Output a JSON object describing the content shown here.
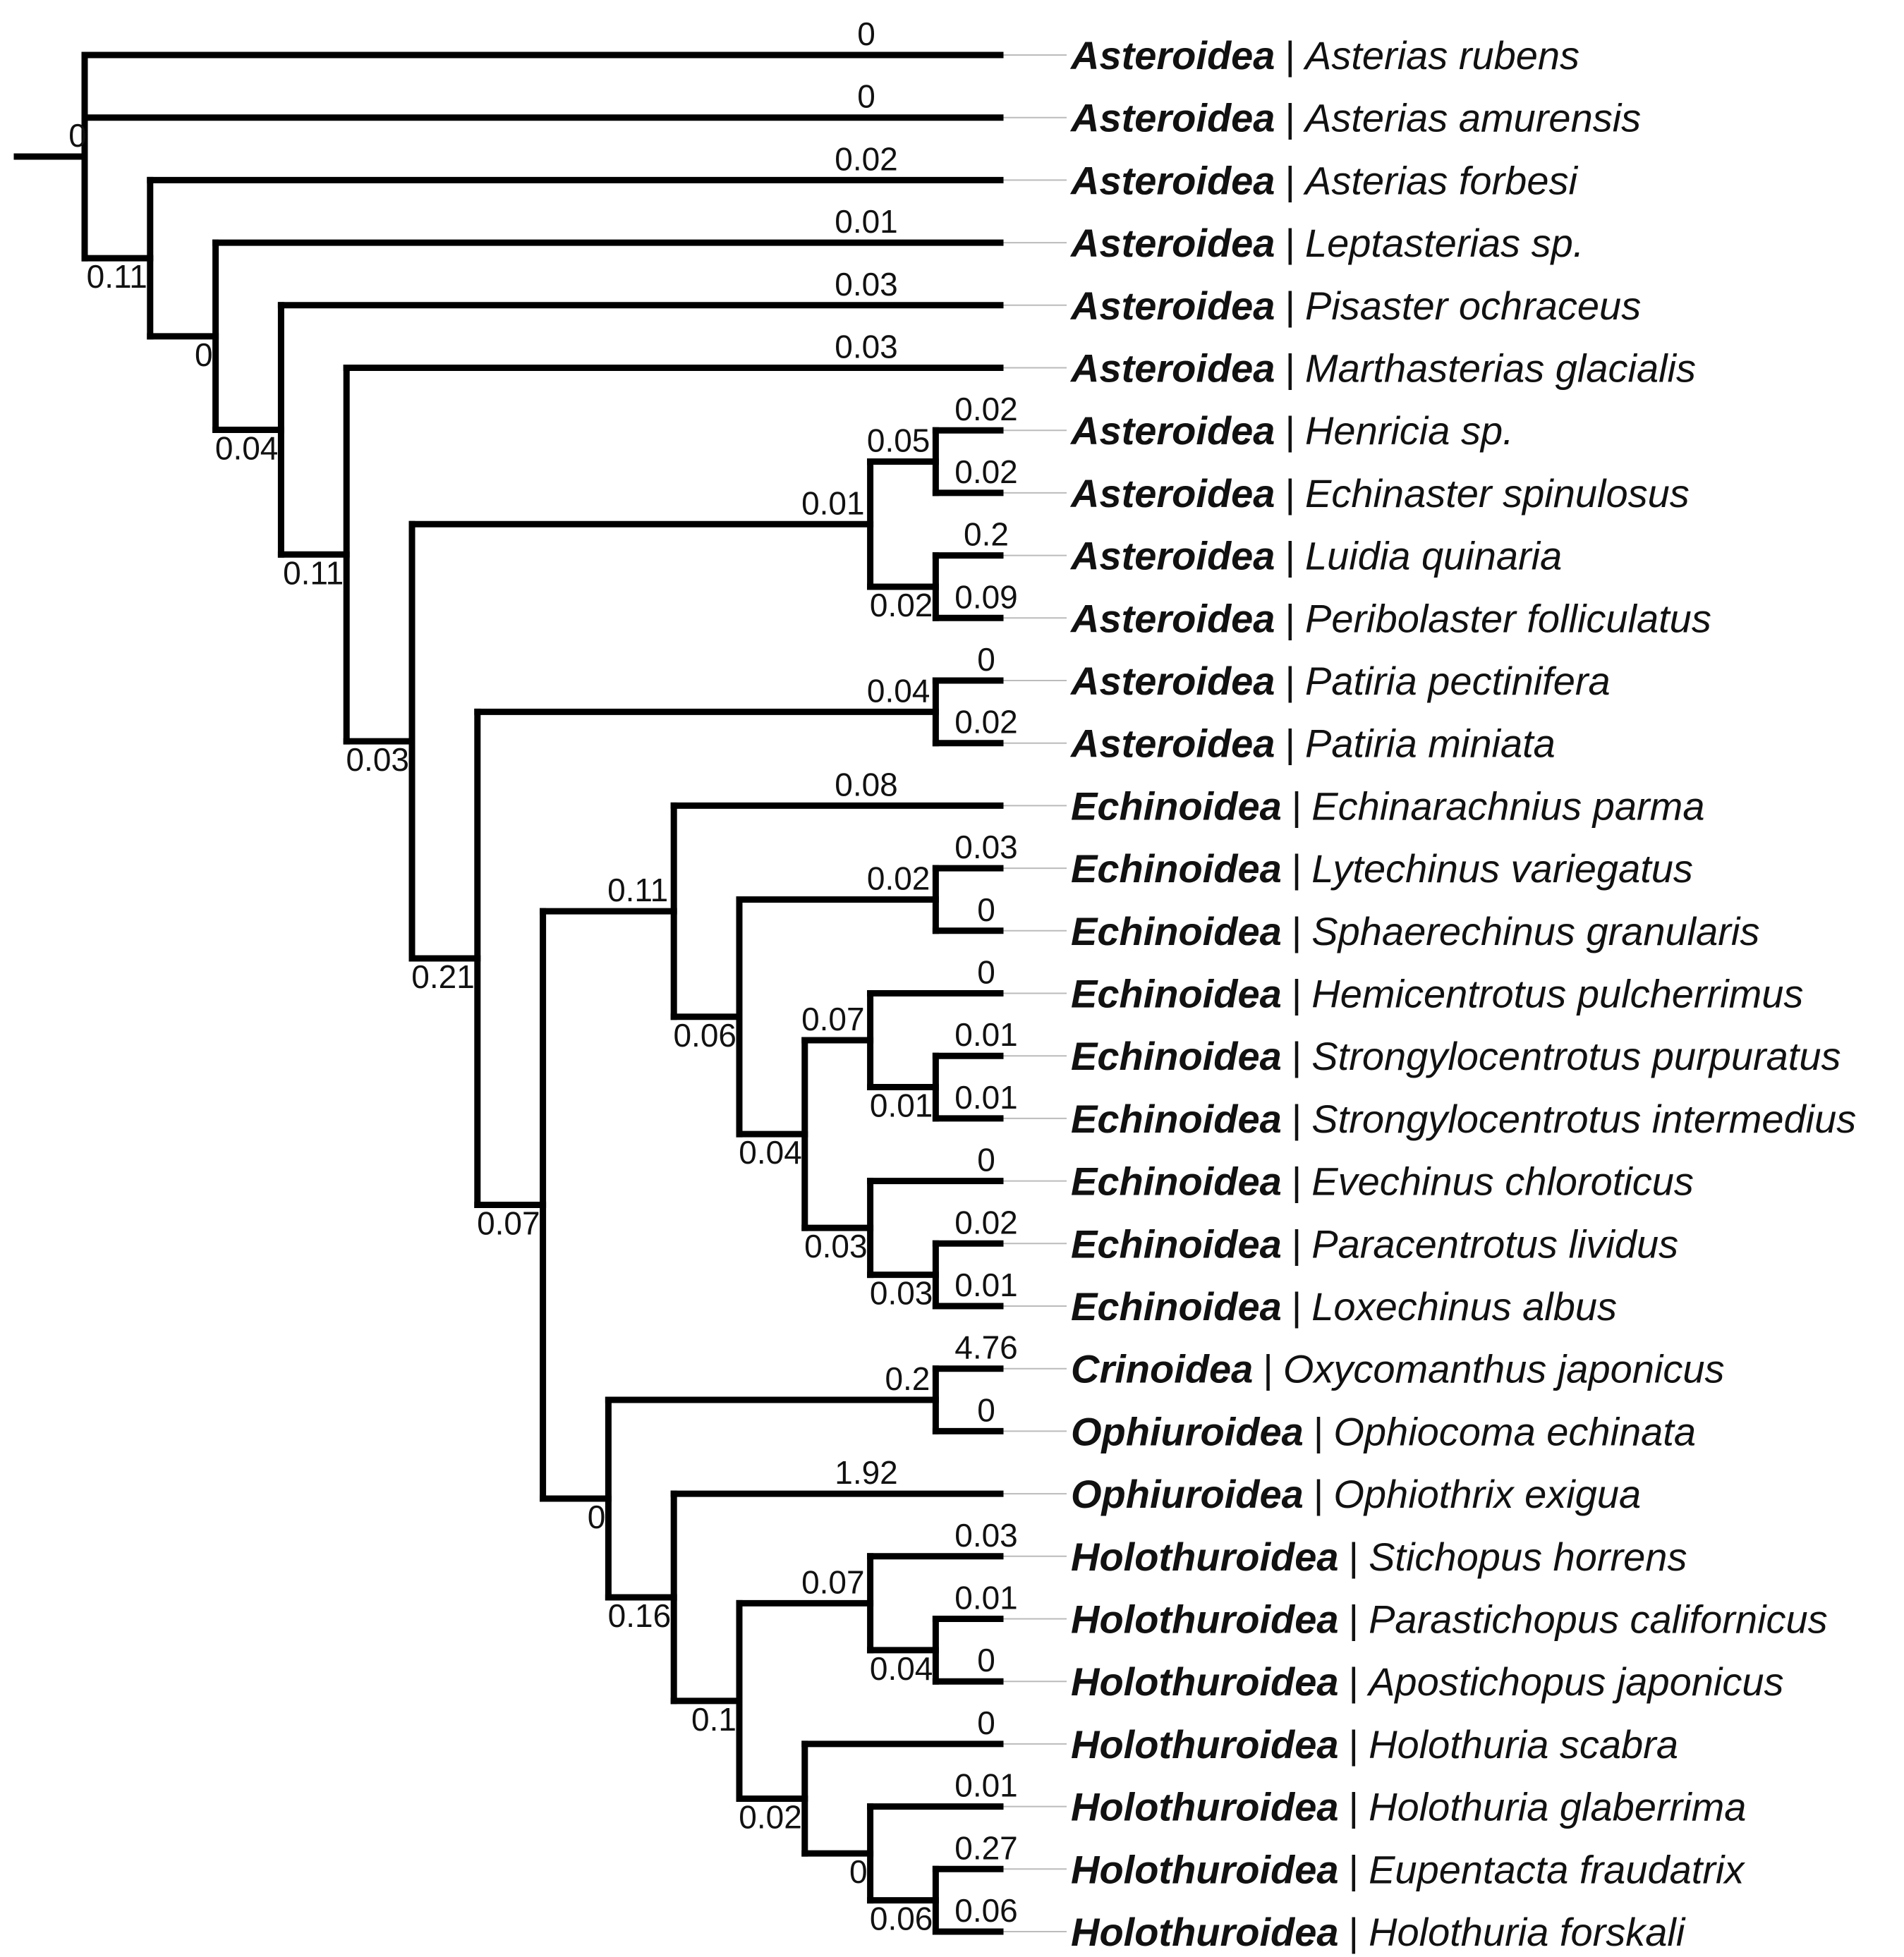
{
  "style": {
    "branch_color": "#000000",
    "leader_color": "#bbbbbb",
    "text_color": "#111111"
  },
  "tips": [
    {
      "cls": "Asteroidea",
      "species": "Asterias rubens"
    },
    {
      "cls": "Asteroidea",
      "species": "Asterias amurensis"
    },
    {
      "cls": "Asteroidea",
      "species": "Asterias forbesi"
    },
    {
      "cls": "Asteroidea",
      "species": "Leptasterias sp."
    },
    {
      "cls": "Asteroidea",
      "species": "Pisaster ochraceus"
    },
    {
      "cls": "Asteroidea",
      "species": "Marthasterias glacialis"
    },
    {
      "cls": "Asteroidea",
      "species": "Henricia sp."
    },
    {
      "cls": "Asteroidea",
      "species": "Echinaster spinulosus"
    },
    {
      "cls": "Asteroidea",
      "species": "Luidia quinaria"
    },
    {
      "cls": "Asteroidea",
      "species": "Peribolaster folliculatus"
    },
    {
      "cls": "Asteroidea",
      "species": "Patiria pectinifera"
    },
    {
      "cls": "Asteroidea",
      "species": "Patiria miniata"
    },
    {
      "cls": "Echinoidea",
      "species": "Echinarachnius parma"
    },
    {
      "cls": "Echinoidea",
      "species": "Lytechinus variegatus"
    },
    {
      "cls": "Echinoidea",
      "species": "Sphaerechinus granularis"
    },
    {
      "cls": "Echinoidea",
      "species": "Hemicentrotus pulcherrimus"
    },
    {
      "cls": "Echinoidea",
      "species": "Strongylocentrotus purpuratus"
    },
    {
      "cls": "Echinoidea",
      "species": "Strongylocentrotus intermedius"
    },
    {
      "cls": "Echinoidea",
      "species": "Evechinus chloroticus"
    },
    {
      "cls": "Echinoidea",
      "species": "Paracentrotus lividus"
    },
    {
      "cls": "Echinoidea",
      "species": "Loxechinus albus"
    },
    {
      "cls": "Crinoidea",
      "species": "Oxycomanthus japonicus"
    },
    {
      "cls": "Ophiuroidea",
      "species": "Ophiocoma echinata"
    },
    {
      "cls": "Ophiuroidea",
      "species": "Ophiothrix exigua"
    },
    {
      "cls": "Holothuroidea",
      "species": "Stichopus horrens"
    },
    {
      "cls": "Holothuroidea",
      "species": "Parastichopus californicus"
    },
    {
      "cls": "Holothuroidea",
      "species": "Apostichopus japonicus"
    },
    {
      "cls": "Holothuroidea",
      "species": "Holothuria scabra"
    },
    {
      "cls": "Holothuroidea",
      "species": "Holothuria glaberrima"
    },
    {
      "cls": "Holothuroidea",
      "species": "Eupentacta fraudatrix"
    },
    {
      "cls": "Holothuroidea",
      "species": "Holothuria forskali"
    }
  ],
  "tree": {
    "id": "root",
    "depth": 0,
    "label": "0",
    "children": [
      {
        "id": "t0",
        "tip": 0,
        "label": "0"
      },
      {
        "id": "t1",
        "tip": 1,
        "label": "0"
      },
      {
        "id": "n1",
        "depth": 1,
        "label": "0.11",
        "children": [
          {
            "id": "t2",
            "tip": 2,
            "label": "0.02"
          },
          {
            "id": "n2",
            "depth": 2,
            "label": "0",
            "children": [
              {
                "id": "t3",
                "tip": 3,
                "label": "0.01"
              },
              {
                "id": "n3",
                "depth": 3,
                "label": "0.04",
                "children": [
                  {
                    "id": "t4",
                    "tip": 4,
                    "label": "0.03"
                  },
                  {
                    "id": "n4",
                    "depth": 4,
                    "label": "0.11",
                    "children": [
                      {
                        "id": "t5",
                        "tip": 5,
                        "label": "0.03"
                      },
                      {
                        "id": "n5",
                        "depth": 5,
                        "label": "0.03",
                        "children": [
                          {
                            "id": "n_hl",
                            "depth": 12,
                            "label": "0.01",
                            "children": [
                              {
                                "id": "n_he",
                                "depth": 13,
                                "label": "0.05",
                                "children": [
                                  {
                                    "id": "t6",
                                    "tip": 6,
                                    "label": "0.02"
                                  },
                                  {
                                    "id": "t7",
                                    "tip": 7,
                                    "label": "0.02"
                                  }
                                ]
                              },
                              {
                                "id": "n_lp",
                                "depth": 13,
                                "label": "0.02",
                                "children": [
                                  {
                                    "id": "t8",
                                    "tip": 8,
                                    "label": "0.2"
                                  },
                                  {
                                    "id": "t9",
                                    "tip": 9,
                                    "label": "0.09"
                                  }
                                ]
                              }
                            ]
                          },
                          {
                            "id": "n6",
                            "depth": 6,
                            "label": "0.21",
                            "children": [
                              {
                                "id": "n_pat",
                                "depth": 13,
                                "label": "0.04",
                                "children": [
                                  {
                                    "id": "t10",
                                    "tip": 10,
                                    "label": "0"
                                  },
                                  {
                                    "id": "t11",
                                    "tip": 11,
                                    "label": "0.02"
                                  }
                                ]
                              },
                              {
                                "id": "n7",
                                "depth": 7,
                                "label": "0.07",
                                "children": [
                                  {
                                    "id": "n_ech",
                                    "depth": 9,
                                    "label": "0.11",
                                    "children": [
                                      {
                                        "id": "t12",
                                        "tip": 12,
                                        "label": "0.08"
                                      },
                                      {
                                        "id": "n_e2",
                                        "depth": 10,
                                        "label": "0.06",
                                        "children": [
                                          {
                                            "id": "n_ly",
                                            "depth": 13,
                                            "label": "0.02",
                                            "children": [
                                              {
                                                "id": "t13",
                                                "tip": 13,
                                                "label": "0.03"
                                              },
                                              {
                                                "id": "t14",
                                                "tip": 14,
                                                "label": "0"
                                              }
                                            ]
                                          },
                                          {
                                            "id": "n_e3",
                                            "depth": 11,
                                            "label": "0.04",
                                            "children": [
                                              {
                                                "id": "n_hs",
                                                "depth": 12,
                                                "label": "0.07",
                                                "children": [
                                                  {
                                                    "id": "t15",
                                                    "tip": 15,
                                                    "label": "0"
                                                  },
                                                  {
                                                    "id": "n_st",
                                                    "depth": 13,
                                                    "label": "0.01",
                                                    "children": [
                                                      {
                                                        "id": "t16",
                                                        "tip": 16,
                                                        "label": "0.01"
                                                      },
                                                      {
                                                        "id": "t17",
                                                        "tip": 17,
                                                        "label": "0.01"
                                                      }
                                                    ]
                                                  }
                                                ]
                                              },
                                              {
                                                "id": "n_ep",
                                                "depth": 12,
                                                "label": "0.03",
                                                "children": [
                                                  {
                                                    "id": "t18",
                                                    "tip": 18,
                                                    "label": "0"
                                                  },
                                                  {
                                                    "id": "n_pl",
                                                    "depth": 13,
                                                    "label": "0.03",
                                                    "children": [
                                                      {
                                                        "id": "t19",
                                                        "tip": 19,
                                                        "label": "0.02"
                                                      },
                                                      {
                                                        "id": "t20",
                                                        "tip": 20,
                                                        "label": "0.01"
                                                      }
                                                    ]
                                                  }
                                                ]
                                              }
                                            ]
                                          }
                                        ]
                                      }
                                    ]
                                  },
                                  {
                                    "id": "n8",
                                    "depth": 8,
                                    "label": "0",
                                    "children": [
                                      {
                                        "id": "n_co",
                                        "depth": 13,
                                        "label": "0.2",
                                        "children": [
                                          {
                                            "id": "t21",
                                            "tip": 21,
                                            "label": "4.76"
                                          },
                                          {
                                            "id": "t22",
                                            "tip": 22,
                                            "label": "0"
                                          }
                                        ]
                                      },
                                      {
                                        "id": "n9",
                                        "depth": 9,
                                        "label": "0.16",
                                        "children": [
                                          {
                                            "id": "t23",
                                            "tip": 23,
                                            "label": "1.92"
                                          },
                                          {
                                            "id": "n10",
                                            "depth": 10,
                                            "label": "0.1",
                                            "children": [
                                              {
                                                "id": "n_sti",
                                                "depth": 12,
                                                "label": "0.07",
                                                "children": [
                                                  {
                                                    "id": "t24",
                                                    "tip": 24,
                                                    "label": "0.03"
                                                  },
                                                  {
                                                    "id": "n_pa",
                                                    "depth": 13,
                                                    "label": "0.04",
                                                    "children": [
                                                      {
                                                        "id": "t25",
                                                        "tip": 25,
                                                        "label": "0.01"
                                                      },
                                                      {
                                                        "id": "t26",
                                                        "tip": 26,
                                                        "label": "0"
                                                      }
                                                    ]
                                                  }
                                                ]
                                              },
                                              {
                                                "id": "n_ho",
                                                "depth": 11,
                                                "label": "0.02",
                                                "children": [
                                                  {
                                                    "id": "t27",
                                                    "tip": 27,
                                                    "label": "0"
                                                  },
                                                  {
                                                    "id": "n_h2",
                                                    "depth": 12,
                                                    "label": "0",
                                                    "children": [
                                                      {
                                                        "id": "t28",
                                                        "tip": 28,
                                                        "label": "0.01"
                                                      },
                                                      {
                                                        "id": "n_ef",
                                                        "depth": 13,
                                                        "label": "0.06",
                                                        "children": [
                                                          {
                                                            "id": "t29",
                                                            "tip": 29,
                                                            "label": "0.27"
                                                          },
                                                          {
                                                            "id": "t30",
                                                            "tip": 30,
                                                            "label": "0.06"
                                                          }
                                                        ]
                                                      }
                                                    ]
                                                  }
                                                ]
                                              }
                                            ]
                                          }
                                        ]
                                      }
                                    ]
                                  }
                                ]
                              }
                            ]
                          }
                        ]
                      }
                    ]
                  }
                ]
              }
            ]
          }
        ]
      }
    ]
  }
}
